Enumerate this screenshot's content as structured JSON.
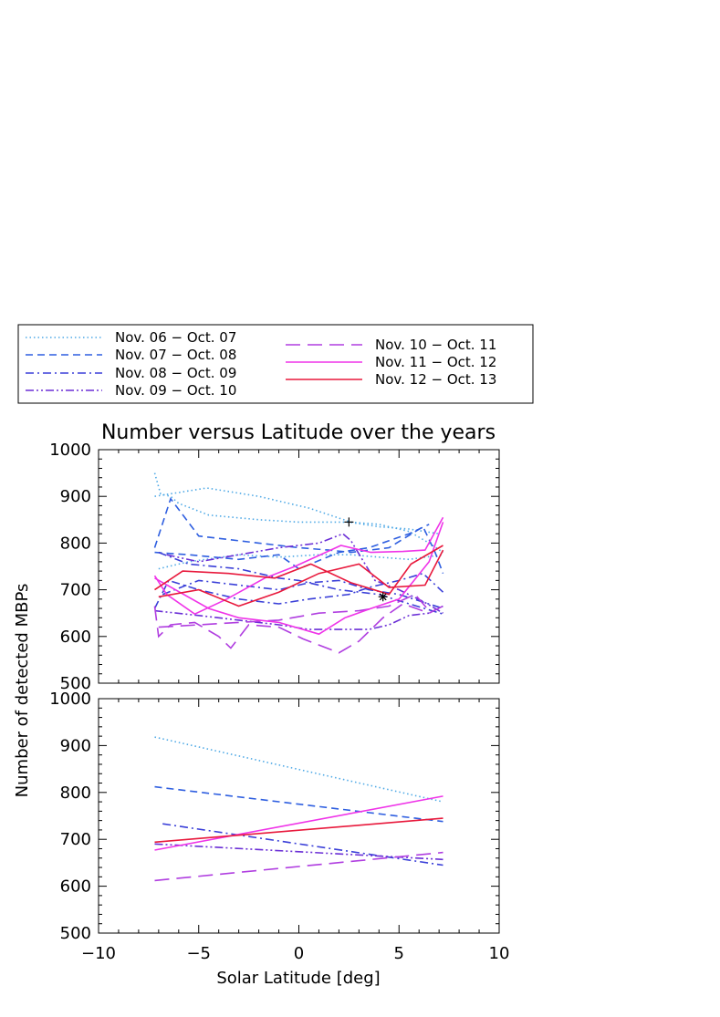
{
  "chart_data": {
    "type": "line",
    "title": "Number versus Latitude over the years",
    "xlabel": "Solar Latitude [deg]",
    "ylabel": "Number of detected MBPs",
    "xlim": [
      -10,
      10
    ],
    "ylim": [
      500,
      1000
    ],
    "x_ticks": [
      "−10",
      "−5",
      "0",
      "5",
      "10"
    ],
    "y_ticks": [
      "500",
      "600",
      "700",
      "800",
      "900",
      "1000"
    ],
    "grid": false,
    "legend_placement": "top, above plots (boxed, two columns)",
    "series": [
      {
        "name": "Nov. 06 − Oct. 07",
        "color": "#4fa9e6",
        "dash": "dotted"
      },
      {
        "name": "Nov. 07 − Oct. 08",
        "color": "#2f5fe0",
        "dash": "dashed"
      },
      {
        "name": "Nov. 08 − Oct. 09",
        "color": "#3a3fd8",
        "dash": "dash-dot"
      },
      {
        "name": "Nov. 09 − Oct. 10",
        "color": "#6b2fd6",
        "dash": "dash-dot-dot"
      },
      {
        "name": "Nov. 10 − Oct. 11",
        "color": "#b03ee0",
        "dash": "long-dash"
      },
      {
        "name": "Nov. 11 − Oct. 12",
        "color": "#ef34e8",
        "dash": "solid"
      },
      {
        "name": "Nov. 12 − Oct. 13",
        "color": "#e8193c",
        "dash": "solid"
      }
    ],
    "panels": [
      {
        "name": "raw",
        "series": [
          {
            "ref": 0,
            "points": [
              [
                -7.2,
                950
              ],
              [
                -6.9,
                905
              ],
              [
                -6.4,
                900
              ],
              [
                -6.0,
                885
              ],
              [
                -4.5,
                860
              ],
              [
                -2,
                850
              ],
              [
                0,
                845
              ],
              [
                2.5,
                845
              ],
              [
                4.0,
                835
              ],
              [
                5.5,
                830
              ],
              [
                7.0,
                820
              ]
            ]
          },
          {
            "ref": 0,
            "points": [
              [
                -7.2,
                900
              ],
              [
                -4.6,
                918
              ],
              [
                -2,
                900
              ],
              [
                0.5,
                875
              ],
              [
                2.6,
                845
              ],
              [
                4.0,
                840
              ],
              [
                5.5,
                825
              ],
              [
                6.5,
                800
              ],
              [
                7.2,
                780
              ]
            ]
          },
          {
            "ref": 0,
            "points": [
              [
                -7.0,
                745
              ],
              [
                -5.5,
                760
              ],
              [
                -3,
                775
              ],
              [
                -1,
                770
              ],
              [
                1,
                775
              ],
              [
                2.6,
                775
              ],
              [
                4,
                770
              ],
              [
                5.5,
                765
              ],
              [
                7.2,
                775
              ]
            ]
          },
          {
            "ref": 1,
            "points": [
              [
                -7.2,
                790
              ],
              [
                -6.4,
                895
              ],
              [
                -5,
                815
              ],
              [
                -2,
                800
              ],
              [
                0,
                790
              ],
              [
                1.5,
                785
              ],
              [
                2.6,
                780
              ],
              [
                4.5,
                790
              ],
              [
                6.2,
                835
              ],
              [
                6.8,
                780
              ],
              [
                7.2,
                735
              ]
            ]
          },
          {
            "ref": 1,
            "points": [
              [
                -7.2,
                780
              ],
              [
                -5.5,
                775
              ],
              [
                -3,
                765
              ],
              [
                -1,
                775
              ],
              [
                0,
                745
              ],
              [
                2,
                780
              ],
              [
                3.5,
                790
              ],
              [
                5.5,
                820
              ],
              [
                6.5,
                840
              ]
            ]
          },
          {
            "ref": 2,
            "points": [
              [
                -7.2,
                660
              ],
              [
                -6.5,
                720
              ],
              [
                -5,
                700
              ],
              [
                -3,
                680
              ],
              [
                -1,
                670
              ],
              [
                0.5,
                680
              ],
              [
                2.5,
                690
              ],
              [
                3.5,
                705
              ],
              [
                5,
                720
              ],
              [
                6.2,
                735
              ],
              [
                7.2,
                695
              ]
            ]
          },
          {
            "ref": 2,
            "points": [
              [
                -7.0,
                780
              ],
              [
                -5.5,
                755
              ],
              [
                -3,
                745
              ],
              [
                -1,
                725
              ],
              [
                0,
                720
              ],
              [
                2,
                700
              ],
              [
                4,
                690
              ],
              [
                5.5,
                670
              ],
              [
                7.2,
                648
              ]
            ]
          },
          {
            "ref": 2,
            "points": [
              [
                -6.8,
                690
              ],
              [
                -5,
                720
              ],
              [
                -3,
                710
              ],
              [
                -1,
                700
              ],
              [
                0.5,
                715
              ],
              [
                2,
                720
              ],
              [
                3.5,
                700
              ],
              [
                5,
                690
              ],
              [
                7.2,
                660
              ]
            ]
          },
          {
            "ref": 3,
            "points": [
              [
                -6.6,
                775
              ],
              [
                -5,
                760
              ],
              [
                -3,
                775
              ],
              [
                -1,
                790
              ],
              [
                1,
                800
              ],
              [
                2.2,
                820
              ],
              [
                2.6,
                805
              ],
              [
                3.8,
                720
              ],
              [
                5,
                700
              ],
              [
                6.2,
                675
              ],
              [
                7.2,
                650
              ]
            ]
          },
          {
            "ref": 3,
            "points": [
              [
                -7.2,
                655
              ],
              [
                -5,
                645
              ],
              [
                -3,
                635
              ],
              [
                -1,
                625
              ],
              [
                0.5,
                615
              ],
              [
                2,
                615
              ],
              [
                3.5,
                615
              ],
              [
                4.5,
                625
              ],
              [
                5.5,
                645
              ],
              [
                6.5,
                650
              ],
              [
                7.2,
                665
              ]
            ]
          },
          {
            "ref": 4,
            "points": [
              [
                -7.2,
                665
              ],
              [
                -7.0,
                600
              ],
              [
                -6.4,
                625
              ],
              [
                -5.2,
                630
              ],
              [
                -4.0,
                600
              ],
              [
                -3.4,
                575
              ],
              [
                -2.5,
                625
              ],
              [
                -1,
                620
              ],
              [
                0.2,
                595
              ],
              [
                2,
                565
              ],
              [
                3,
                590
              ],
              [
                4.2,
                640
              ],
              [
                5.2,
                670
              ],
              [
                6.5,
                650
              ],
              [
                7.2,
                665
              ]
            ]
          },
          {
            "ref": 4,
            "points": [
              [
                -7.0,
                620
              ],
              [
                -5,
                625
              ],
              [
                -3,
                630
              ],
              [
                -1,
                635
              ],
              [
                1,
                650
              ],
              [
                3,
                655
              ],
              [
                4.5,
                665
              ],
              [
                5.8,
                690
              ],
              [
                6.6,
                650
              ]
            ]
          },
          {
            "ref": 5,
            "points": [
              [
                -7.2,
                730
              ],
              [
                -6.6,
                690
              ],
              [
                -5.2,
                648
              ],
              [
                -3.6,
                680
              ],
              [
                -1.7,
                725
              ],
              [
                -0.2,
                750
              ],
              [
                2.1,
                795
              ],
              [
                3.6,
                780
              ],
              [
                5.2,
                782
              ],
              [
                6.3,
                785
              ],
              [
                7.2,
                855
              ]
            ]
          },
          {
            "ref": 5,
            "points": [
              [
                -7.2,
                725
              ],
              [
                -4.5,
                660
              ],
              [
                -3,
                640
              ],
              [
                -1,
                630
              ],
              [
                1,
                605
              ],
              [
                2.3,
                640
              ],
              [
                3.6,
                660
              ],
              [
                5,
                680
              ],
              [
                6.5,
                760
              ],
              [
                7.2,
                845
              ]
            ]
          },
          {
            "ref": 6,
            "points": [
              [
                -7.2,
                700
              ],
              [
                -5.8,
                740
              ],
              [
                -3.5,
                735
              ],
              [
                -1.2,
                725
              ],
              [
                0.6,
                755
              ],
              [
                2.6,
                715
              ],
              [
                4.5,
                690
              ],
              [
                5.6,
                755
              ],
              [
                7.2,
                795
              ]
            ]
          },
          {
            "ref": 6,
            "points": [
              [
                -7.0,
                685
              ],
              [
                -5,
                700
              ],
              [
                -3,
                665
              ],
              [
                -1,
                695
              ],
              [
                1,
                735
              ],
              [
                3,
                755
              ],
              [
                4.5,
                705
              ],
              [
                6.3,
                710
              ],
              [
                7.2,
                785
              ]
            ]
          }
        ],
        "markers": [
          {
            "symbol": "+",
            "x": 2.5,
            "y": 845
          },
          {
            "symbol": "*",
            "x": 4.2,
            "y": 685
          }
        ]
      },
      {
        "name": "fit",
        "series": [
          {
            "ref": 0,
            "points": [
              [
                -7.2,
                918
              ],
              [
                7.2,
                780
              ]
            ]
          },
          {
            "ref": 1,
            "points": [
              [
                -7.2,
                812
              ],
              [
                7.2,
                738
              ]
            ]
          },
          {
            "ref": 2,
            "points": [
              [
                -6.8,
                733
              ],
              [
                7.2,
                645
              ]
            ]
          },
          {
            "ref": 3,
            "points": [
              [
                -7.2,
                690
              ],
              [
                7.2,
                657
              ]
            ]
          },
          {
            "ref": 4,
            "points": [
              [
                -7.2,
                612
              ],
              [
                7.2,
                672
              ]
            ]
          },
          {
            "ref": 5,
            "points": [
              [
                -7.2,
                677
              ],
              [
                7.2,
                792
              ]
            ]
          },
          {
            "ref": 6,
            "points": [
              [
                -7.2,
                694
              ],
              [
                7.2,
                745
              ]
            ]
          }
        ]
      }
    ]
  }
}
